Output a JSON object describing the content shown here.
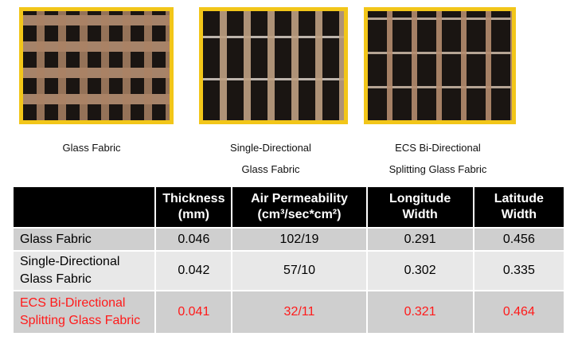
{
  "images": [
    {
      "name": "glass-fabric",
      "caption": [
        "Glass Fabric",
        ""
      ]
    },
    {
      "name": "single-directional-glass-fabric",
      "caption": [
        "Single-Directional",
        "Glass Fabric"
      ]
    },
    {
      "name": "ecs-bi-directional-splitting-glass-fabric",
      "caption": [
        "ECS Bi-Directional",
        "Splitting Glass Fabric"
      ]
    }
  ],
  "colors": {
    "frame": "#f2c619",
    "highlight": "#ff1a1a",
    "header_bg": "#000000"
  },
  "table": {
    "headers": [
      "",
      [
        "Thickness",
        "(mm)"
      ],
      [
        "Air Permeability",
        "(cm³/sec*cm²)"
      ],
      [
        "Longitude",
        "Width"
      ],
      [
        "Latitude",
        "Width"
      ]
    ],
    "rows": [
      {
        "name": [
          "Glass Fabric",
          ""
        ],
        "values": [
          "0.046",
          "102/19",
          "0.291",
          "0.456"
        ]
      },
      {
        "name": [
          "Single-Directional",
          "Glass Fabric"
        ],
        "values": [
          "0.042",
          "57/10",
          "0.302",
          "0.335"
        ]
      },
      {
        "name": [
          "ECS Bi-Directional",
          "Splitting Glass Fabric"
        ],
        "values": [
          "0.041",
          "32/11",
          "0.321",
          "0.464"
        ],
        "highlight": true
      }
    ]
  }
}
